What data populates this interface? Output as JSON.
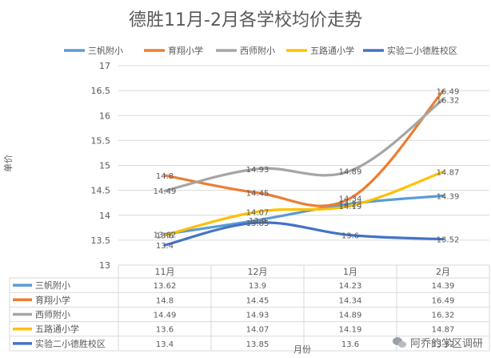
{
  "colors": {
    "series": [
      "#5B9BD5",
      "#ED7D31",
      "#A5A5A5",
      "#FFC000",
      "#4472C4"
    ],
    "grid": "#D9D9D9",
    "text": "#595959",
    "title": "#595959"
  },
  "watermark": {
    "text": "阿乔的学区调研",
    "icon": "wechat-icon"
  },
  "chart_data": {
    "type": "line",
    "title": "德胜11月-2月各学校均价走势",
    "xlabel": "月份",
    "ylabel": "单价",
    "categories": [
      "11月",
      "12月",
      "1月",
      "2月"
    ],
    "ylim": [
      13,
      17
    ],
    "yticks": [
      "13",
      "13.5",
      "14",
      "14.5",
      "15",
      "15.5",
      "16",
      "16.5",
      "17"
    ],
    "grid": true,
    "legend": "top",
    "series": [
      {
        "name": "三帆附小",
        "values": [
          13.62,
          13.9,
          14.23,
          14.39
        ]
      },
      {
        "name": "育翔小学",
        "values": [
          14.8,
          14.45,
          14.34,
          16.49
        ]
      },
      {
        "name": "西师附小",
        "values": [
          14.49,
          14.93,
          14.89,
          16.32
        ]
      },
      {
        "name": "五路通小学",
        "values": [
          13.6,
          14.07,
          14.19,
          14.87
        ]
      },
      {
        "name": "实验二小德胜校区",
        "values": [
          13.4,
          13.85,
          13.6,
          13.52
        ]
      }
    ]
  }
}
